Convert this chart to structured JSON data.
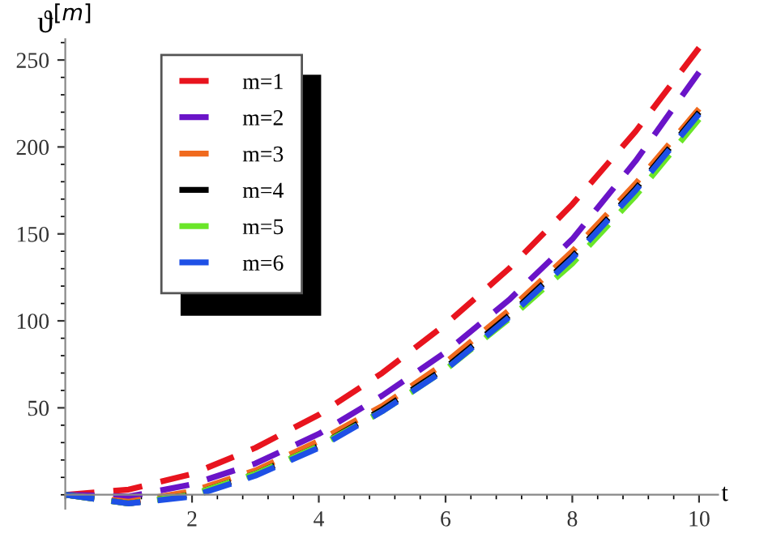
{
  "chart_data": {
    "type": "line",
    "xlabel": "t",
    "ylabel": "ϑ$^{[m]}$",
    "x": [
      0,
      1,
      2,
      3,
      4,
      5,
      6,
      7,
      8,
      9,
      10
    ],
    "series": [
      {
        "name": "m=1",
        "color": "#e8141e",
        "values": [
          0,
          3,
          12,
          27,
          46,
          70,
          98,
          130,
          167,
          209,
          257
        ]
      },
      {
        "name": "m=2",
        "color": "#6a14c8",
        "values": [
          0,
          -1,
          6,
          18,
          35,
          57,
          82,
          112,
          147,
          192,
          243
        ]
      },
      {
        "name": "m=3",
        "color": "#f06a1e",
        "values": [
          0,
          -4,
          2,
          14,
          31,
          51,
          76,
          106,
          140,
          179,
          222
        ]
      },
      {
        "name": "m=4",
        "color": "#000000",
        "values": [
          0,
          -5,
          0,
          12,
          28,
          49,
          73,
          103,
          137,
          176,
          220
        ]
      },
      {
        "name": "m=5",
        "color": "#6ae628",
        "values": [
          0,
          -5,
          0,
          12,
          28,
          48,
          72,
          101,
          133,
          172,
          216
        ]
      },
      {
        "name": "m=6",
        "color": "#1e50e6",
        "values": [
          0,
          -5,
          -1,
          11,
          27,
          48,
          72,
          102,
          136,
          175,
          219
        ]
      }
    ],
    "xlim": [
      0,
      10.3
    ],
    "ylim": [
      -8,
      262
    ],
    "xticks": [
      2,
      4,
      6,
      8,
      10
    ],
    "yticks": [
      50,
      100,
      150,
      200,
      250
    ],
    "line_style": "dashed",
    "marker": "none",
    "grid": false,
    "legend": "top left"
  }
}
